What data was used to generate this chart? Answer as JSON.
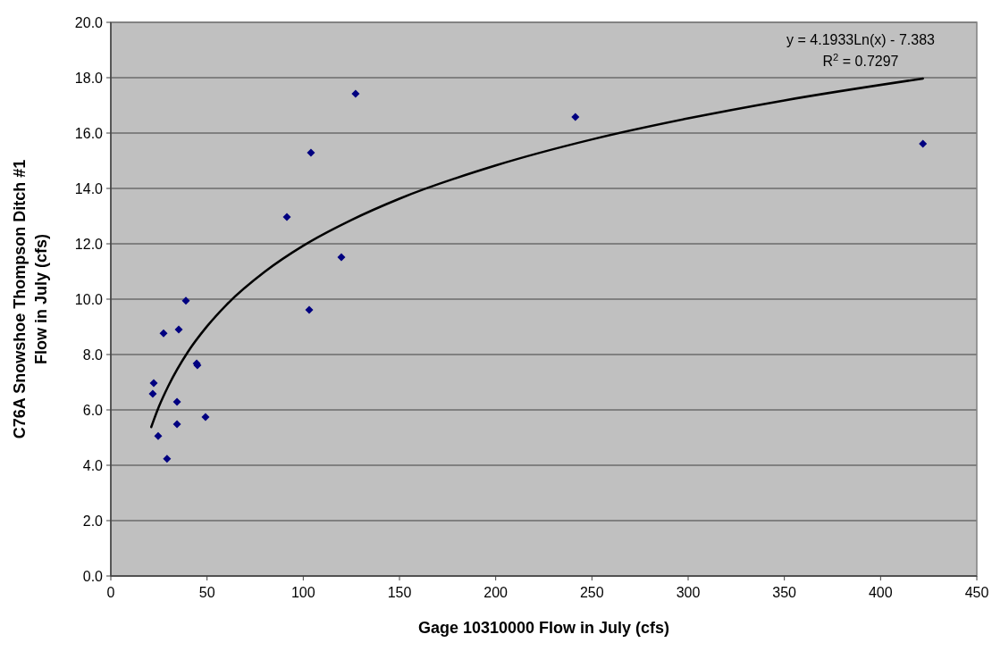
{
  "chart_data": {
    "type": "scatter",
    "xlabel": "Gage 10310000 Flow in July (cfs)",
    "ylabel": "C76A Snowshoe Thompson Ditch #1\nFlow in July (cfs)",
    "xlim": [
      0,
      450
    ],
    "xticks": [
      0,
      50,
      100,
      150,
      200,
      250,
      300,
      350,
      400,
      450
    ],
    "ylim": [
      0,
      20
    ],
    "yticks": [
      {
        "value": 0,
        "label": "0.0"
      },
      {
        "value": 2,
        "label": "2.0"
      },
      {
        "value": 4,
        "label": "4.0"
      },
      {
        "value": 6,
        "label": "6.0"
      },
      {
        "value": 8,
        "label": "8.0"
      },
      {
        "value": 10,
        "label": "10.0"
      },
      {
        "value": 12,
        "label": "12.0"
      },
      {
        "value": 14,
        "label": "14.0"
      },
      {
        "value": 16,
        "label": "16.0"
      },
      {
        "value": 18,
        "label": "18.0"
      },
      {
        "value": 20,
        "label": "20.0"
      }
    ],
    "grid": "y",
    "marker": "diamond",
    "annotations": [
      "y = 4.1933Ln(x) - 7.383",
      "R$^{2}$ = 0.7297"
    ],
    "series": [
      {
        "color": "#000080",
        "x": [
          21.8,
          22.3,
          24.6,
          27.4,
          29.2,
          34.4,
          34.4,
          35.3,
          39.0,
          44.6,
          45.0,
          49.2,
          91.5,
          103.1,
          104.0,
          119.8,
          127.2,
          241.4,
          422.0
        ],
        "values": [
          6.58,
          6.97,
          5.06,
          8.77,
          4.23,
          6.29,
          5.48,
          8.9,
          9.94,
          7.68,
          7.61,
          5.74,
          12.97,
          9.61,
          15.29,
          11.52,
          17.42,
          16.58,
          15.61
        ]
      },
      {
        "type": "line",
        "color": "#000000",
        "marker": "none",
        "line_style": "solid",
        "x": [
          21,
          25,
          30,
          40,
          50,
          60,
          80,
          100,
          125,
          150,
          200,
          250,
          300,
          350,
          422
        ],
        "values": [
          5.38,
          6.12,
          6.88,
          8.09,
          9.02,
          9.79,
          10.99,
          11.93,
          12.86,
          13.63,
          14.83,
          15.77,
          16.53,
          17.18,
          17.97
        ]
      }
    ]
  }
}
